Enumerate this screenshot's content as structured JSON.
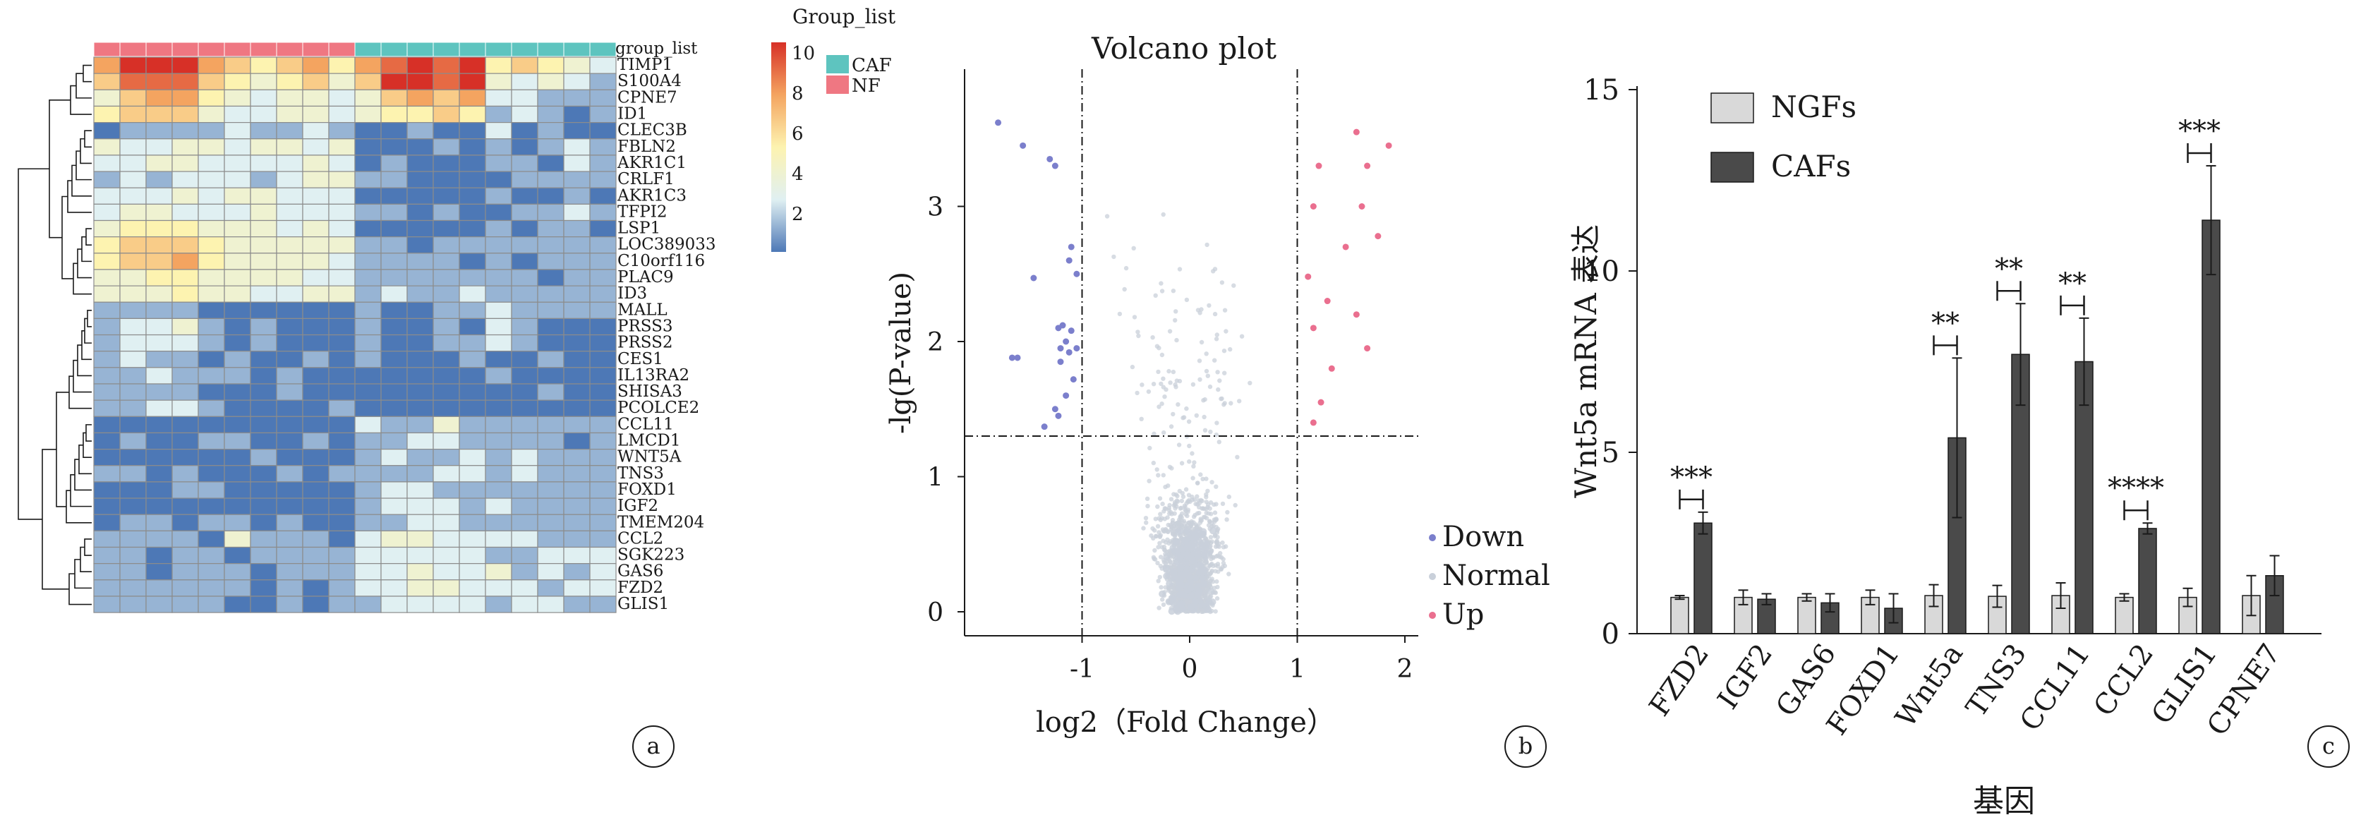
{
  "panel_a": {
    "letter": "a",
    "group_row_label": "group_list",
    "legend": {
      "title": "Group_list",
      "groups": [
        {
          "name": "CAF",
          "color": "#5ec4bf"
        },
        {
          "name": "NF",
          "color": "#ef7782"
        }
      ],
      "scale_ticks": [
        "10",
        "8",
        "6",
        "4",
        "2"
      ],
      "colors": [
        "#4d78b6",
        "#e0f0f2",
        "#fdf3b0",
        "#f4a460",
        "#d73027"
      ]
    }
  },
  "panel_b": {
    "letter": "b"
  },
  "panel_c": {
    "letter": "c"
  },
  "chart_data": [
    {
      "type": "heatmap",
      "panel": "a",
      "rows": [
        "TIMP1",
        "S100A4",
        "CPNE7",
        "ID1",
        "CLEC3B",
        "FBLN2",
        "AKR1C1",
        "CRLF1",
        "AKR1C3",
        "TFPI2",
        "LSP1",
        "LOC389033",
        "C10orf116",
        "PLAC9",
        "ID3",
        "MALL",
        "PRSS3",
        "PRSS2",
        "CES1",
        "IL13RA2",
        "SHISA3",
        "PCOLCE2",
        "CCL11",
        "LMCD1",
        "WNT5A",
        "TNS3",
        "FOXD1",
        "IGF2",
        "TMEM204",
        "CCL2",
        "SGK223",
        "GAS6",
        "FZD2",
        "GLIS1"
      ],
      "column_groups": [
        "NF",
        "NF",
        "NF",
        "NF",
        "NF",
        "NF",
        "NF",
        "NF",
        "NF",
        "NF",
        "CAF",
        "CAF",
        "CAF",
        "CAF",
        "CAF",
        "CAF",
        "CAF",
        "CAF",
        "CAF",
        "CAF"
      ],
      "values": [
        [
          8,
          10,
          10,
          10,
          8,
          7,
          6,
          7,
          8,
          6,
          8,
          9,
          10,
          9,
          10,
          6,
          7,
          6,
          5,
          4
        ],
        [
          7,
          9,
          9,
          9,
          7,
          6,
          5,
          6,
          7,
          5,
          7,
          10,
          10,
          9,
          10,
          5,
          4,
          5,
          4,
          3
        ],
        [
          5,
          7,
          8,
          8,
          6,
          5,
          4,
          5,
          5,
          4,
          5,
          7,
          8,
          7,
          8,
          4,
          4,
          3,
          3,
          3
        ],
        [
          6,
          7,
          7,
          7,
          5,
          4,
          4,
          5,
          5,
          4,
          5,
          6,
          6,
          7,
          6,
          3,
          4,
          3,
          2,
          3
        ],
        [
          2,
          3,
          3,
          3,
          3,
          4,
          3,
          3,
          4,
          3,
          2,
          2,
          3,
          2,
          2,
          4,
          2,
          3,
          2,
          2
        ],
        [
          5,
          4,
          4,
          5,
          5,
          4,
          5,
          5,
          4,
          5,
          2,
          2,
          2,
          3,
          2,
          3,
          2,
          3,
          4,
          3
        ],
        [
          4,
          4,
          5,
          5,
          4,
          4,
          4,
          4,
          5,
          4,
          2,
          3,
          2,
          2,
          2,
          3,
          3,
          2,
          4,
          3
        ],
        [
          3,
          4,
          3,
          4,
          4,
          4,
          3,
          4,
          5,
          5,
          3,
          3,
          2,
          2,
          2,
          2,
          3,
          3,
          3,
          3
        ],
        [
          4,
          4,
          4,
          5,
          4,
          5,
          5,
          4,
          4,
          4,
          2,
          2,
          2,
          2,
          2,
          3,
          2,
          2,
          3,
          2
        ],
        [
          4,
          5,
          5,
          4,
          4,
          4,
          5,
          4,
          4,
          4,
          3,
          3,
          2,
          3,
          2,
          2,
          3,
          3,
          4,
          3
        ],
        [
          5,
          6,
          6,
          6,
          5,
          5,
          5,
          4,
          5,
          4,
          2,
          2,
          2,
          2,
          2,
          3,
          2,
          3,
          3,
          2
        ],
        [
          6,
          7,
          7,
          7,
          6,
          5,
          5,
          5,
          5,
          5,
          3,
          3,
          2,
          3,
          3,
          3,
          3,
          3,
          3,
          3
        ],
        [
          6,
          7,
          7,
          8,
          6,
          5,
          5,
          5,
          5,
          4,
          3,
          3,
          3,
          3,
          2,
          3,
          2,
          3,
          3,
          3
        ],
        [
          5,
          5,
          6,
          6,
          5,
          5,
          5,
          5,
          4,
          4,
          3,
          3,
          3,
          3,
          3,
          3,
          3,
          2,
          3,
          3
        ],
        [
          5,
          5,
          5,
          6,
          5,
          5,
          4,
          4,
          5,
          5,
          3,
          4,
          3,
          3,
          4,
          3,
          3,
          3,
          3,
          3
        ],
        [
          3,
          3,
          3,
          3,
          2,
          2,
          2,
          2,
          2,
          2,
          3,
          2,
          2,
          3,
          3,
          4,
          3,
          3,
          3,
          3
        ],
        [
          3,
          4,
          4,
          5,
          3,
          2,
          3,
          2,
          2,
          2,
          3,
          2,
          2,
          3,
          2,
          4,
          3,
          2,
          2,
          2
        ],
        [
          3,
          4,
          4,
          4,
          3,
          2,
          3,
          2,
          2,
          2,
          3,
          2,
          2,
          3,
          3,
          4,
          3,
          2,
          2,
          2
        ],
        [
          3,
          4,
          3,
          3,
          2,
          3,
          2,
          2,
          3,
          2,
          3,
          2,
          2,
          2,
          3,
          2,
          2,
          3,
          2,
          2
        ],
        [
          3,
          3,
          4,
          3,
          3,
          3,
          2,
          3,
          2,
          2,
          2,
          2,
          2,
          2,
          2,
          3,
          2,
          2,
          2,
          2
        ],
        [
          3,
          3,
          3,
          3,
          2,
          2,
          2,
          3,
          2,
          2,
          2,
          2,
          2,
          2,
          2,
          2,
          2,
          3,
          2,
          2
        ],
        [
          3,
          3,
          4,
          4,
          3,
          2,
          2,
          2,
          2,
          3,
          2,
          2,
          2,
          2,
          2,
          2,
          2,
          2,
          2,
          2
        ],
        [
          2,
          2,
          2,
          2,
          2,
          2,
          2,
          2,
          2,
          2,
          4,
          3,
          3,
          5,
          3,
          3,
          3,
          3,
          3,
          3
        ],
        [
          2,
          3,
          2,
          2,
          3,
          3,
          2,
          2,
          3,
          2,
          3,
          3,
          4,
          4,
          3,
          3,
          3,
          3,
          2,
          3
        ],
        [
          2,
          2,
          2,
          2,
          2,
          2,
          3,
          2,
          2,
          2,
          3,
          4,
          3,
          3,
          4,
          3,
          4,
          3,
          3,
          3
        ],
        [
          3,
          3,
          2,
          3,
          2,
          2,
          2,
          3,
          2,
          3,
          3,
          3,
          3,
          4,
          4,
          3,
          4,
          3,
          3,
          3
        ],
        [
          2,
          2,
          2,
          3,
          3,
          2,
          2,
          2,
          2,
          2,
          3,
          4,
          4,
          3,
          3,
          3,
          3,
          3,
          3,
          3
        ],
        [
          2,
          2,
          2,
          2,
          2,
          2,
          2,
          2,
          2,
          2,
          3,
          4,
          4,
          4,
          3,
          4,
          3,
          3,
          3,
          3
        ],
        [
          2,
          3,
          3,
          2,
          3,
          3,
          2,
          3,
          2,
          2,
          3,
          3,
          4,
          4,
          3,
          3,
          3,
          3,
          3,
          3
        ],
        [
          3,
          3,
          3,
          3,
          2,
          5,
          3,
          3,
          3,
          2,
          4,
          5,
          5,
          4,
          4,
          4,
          4,
          3,
          3,
          3
        ],
        [
          3,
          3,
          2,
          3,
          3,
          2,
          3,
          3,
          3,
          3,
          4,
          4,
          4,
          4,
          4,
          3,
          3,
          4,
          4,
          4
        ],
        [
          3,
          3,
          2,
          3,
          3,
          3,
          2,
          3,
          3,
          3,
          4,
          4,
          5,
          4,
          4,
          5,
          3,
          4,
          3,
          4
        ],
        [
          3,
          3,
          3,
          3,
          3,
          3,
          2,
          3,
          2,
          3,
          4,
          4,
          5,
          5,
          4,
          4,
          4,
          3,
          4,
          4
        ],
        [
          3,
          3,
          3,
          3,
          3,
          2,
          2,
          3,
          2,
          3,
          3,
          4,
          4,
          4,
          4,
          3,
          4,
          4,
          3,
          3
        ]
      ]
    },
    {
      "type": "scatter",
      "panel": "b",
      "title": "Volcano plot",
      "xlabel": "log2（Fold Change）",
      "ylabel": "-lg(P-value)",
      "xlim": [
        -2,
        2
      ],
      "ylim": [
        -0.1,
        3.85
      ],
      "xticks": [
        -1,
        0,
        1,
        2
      ],
      "yticks": [
        0,
        1,
        2,
        3
      ],
      "thresholds": {
        "x": [
          -1,
          1
        ],
        "y": 1.3
      },
      "legend": [
        "Down",
        "Normal",
        "Up"
      ],
      "legend_position": "bottom-right outside",
      "colors": {
        "Down": "#7b7fcc",
        "Normal": "#c9d0da",
        "Up": "#ea6f8f"
      },
      "series": [
        {
          "name": "Down",
          "points": [
            [
              -1.78,
              3.62
            ],
            [
              -1.55,
              3.45
            ],
            [
              -1.3,
              3.35
            ],
            [
              -1.25,
              3.3
            ],
            [
              -1.1,
              2.7
            ],
            [
              -1.12,
              2.6
            ],
            [
              -1.45,
              2.47
            ],
            [
              -1.05,
              2.5
            ],
            [
              -1.18,
              2.12
            ],
            [
              -1.22,
              2.1
            ],
            [
              -1.1,
              2.08
            ],
            [
              -1.15,
              2.0
            ],
            [
              -1.2,
              1.95
            ],
            [
              -1.05,
              1.95
            ],
            [
              -1.12,
              1.92
            ],
            [
              -1.6,
              1.88
            ],
            [
              -1.65,
              1.88
            ],
            [
              -1.2,
              1.85
            ],
            [
              -1.08,
              1.72
            ],
            [
              -1.15,
              1.6
            ],
            [
              -1.25,
              1.5
            ],
            [
              -1.22,
              1.45
            ],
            [
              -1.35,
              1.37
            ]
          ]
        },
        {
          "name": "Up",
          "points": [
            [
              1.55,
              3.55
            ],
            [
              1.85,
              3.45
            ],
            [
              1.65,
              3.3
            ],
            [
              1.2,
              3.3
            ],
            [
              1.15,
              3.0
            ],
            [
              1.6,
              3.0
            ],
            [
              1.75,
              2.78
            ],
            [
              1.45,
              2.7
            ],
            [
              1.1,
              2.48
            ],
            [
              1.28,
              2.3
            ],
            [
              1.55,
              2.2
            ],
            [
              1.15,
              2.1
            ],
            [
              1.65,
              1.95
            ],
            [
              1.32,
              1.8
            ],
            [
              1.15,
              1.4
            ],
            [
              1.22,
              1.55
            ]
          ]
        }
      ]
    },
    {
      "type": "bar",
      "panel": "c",
      "xlabel": "基因",
      "ylabel": "Wnt5a mRNA 表达",
      "ylim": [
        0,
        15
      ],
      "yticks": [
        0,
        5,
        10,
        15
      ],
      "legend_position": "top-left",
      "categories": [
        "FZD2",
        "IGF2",
        "GAS6",
        "FOXD1",
        "Wnt5a",
        "TNS3",
        "CCL11",
        "CCL2",
        "GLIS1",
        "CPNE7"
      ],
      "series": [
        {
          "name": "NGFs",
          "color": "#d9d9d9",
          "values": [
            1.0,
            1.0,
            1.0,
            1.0,
            1.05,
            1.03,
            1.05,
            1.0,
            1.0,
            1.05
          ],
          "errors": [
            0.05,
            0.2,
            0.1,
            0.2,
            0.3,
            0.3,
            0.35,
            0.1,
            0.25,
            0.55
          ]
        },
        {
          "name": "CAFs",
          "color": "#4a4a4a",
          "values": [
            3.05,
            0.95,
            0.85,
            0.7,
            5.4,
            7.7,
            7.5,
            2.9,
            11.4,
            1.6
          ],
          "errors": [
            0.3,
            0.15,
            0.25,
            0.4,
            2.2,
            1.4,
            1.2,
            0.15,
            1.5,
            0.55
          ]
        }
      ],
      "significance": [
        "***",
        "",
        "",
        "",
        "**",
        "**",
        "**",
        "****",
        "***",
        ""
      ]
    }
  ]
}
